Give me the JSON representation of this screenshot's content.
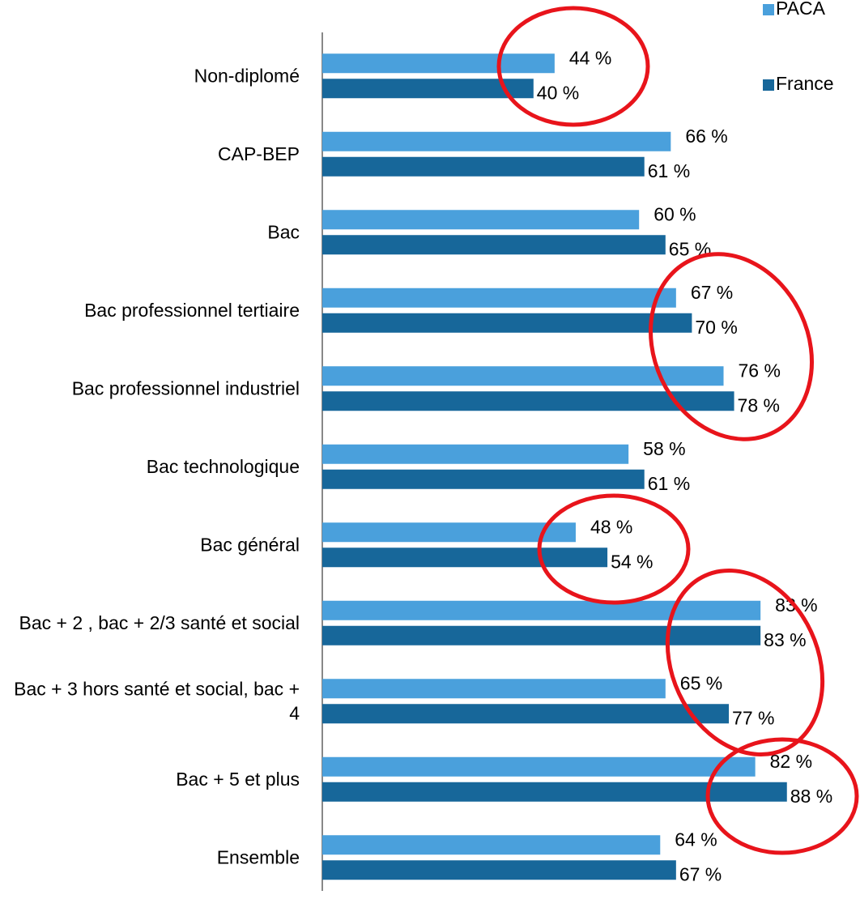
{
  "chart_data": {
    "type": "bar",
    "orientation": "horizontal",
    "categories": [
      "Non-diplomé",
      "CAP-BEP",
      "Bac",
      "Bac professionnel tertiaire",
      "Bac professionnel industriel",
      "Bac technologique",
      "Bac général",
      "Bac + 2 , bac + 2/3 santé et social",
      "Bac + 3 hors santé et social, bac + 4",
      "Bac + 5 et plus",
      "Ensemble"
    ],
    "series": [
      {
        "name": "PACA",
        "color": "#4aa0dc",
        "values": [
          44,
          66,
          60,
          67,
          76,
          58,
          48,
          83,
          65,
          82,
          64
        ],
        "value_labels": [
          "44 %",
          "66 %",
          "60 %",
          "67 %",
          "76 %",
          "58 %",
          "48 %",
          "83 %",
          "65 %",
          "82 %",
          "64 %"
        ]
      },
      {
        "name": "France",
        "color": "#17679a",
        "values": [
          40,
          61,
          65,
          70,
          78,
          61,
          54,
          83,
          77,
          88,
          67
        ],
        "value_labels": [
          "40 %",
          "61 %",
          "65 %",
          "70 %",
          "78 %",
          "61 %",
          "54 %",
          "83 %",
          "77 %",
          "88 %",
          "67 %"
        ]
      }
    ],
    "xlim": [
      0,
      100
    ],
    "legend": "top-right"
  }
}
